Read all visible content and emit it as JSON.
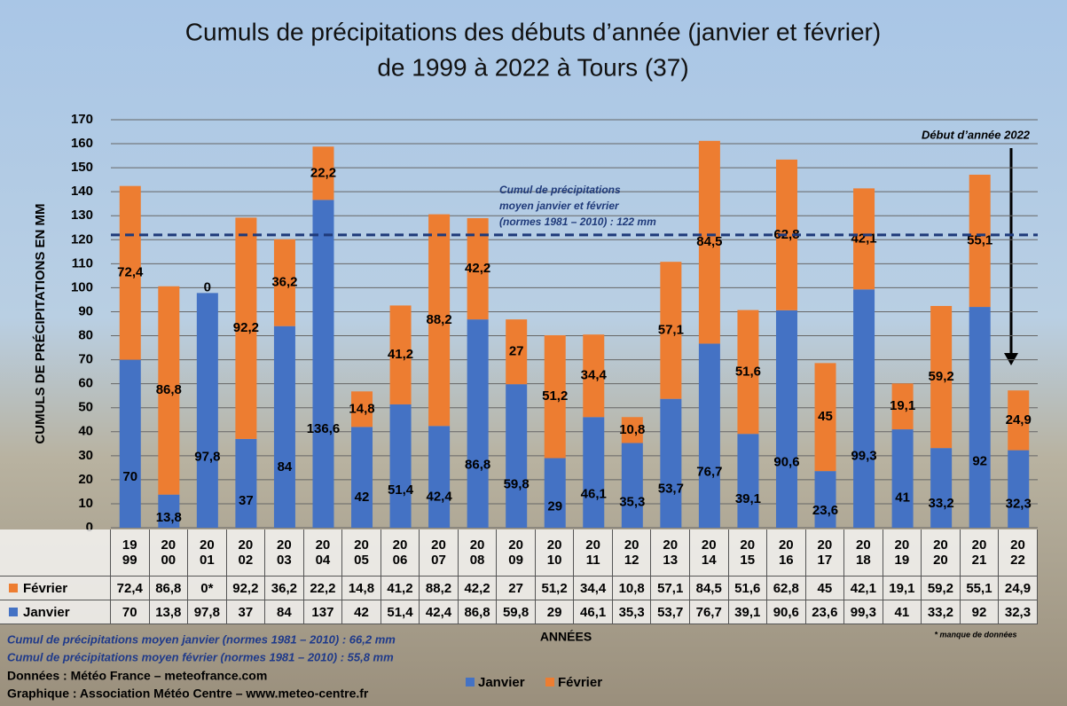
{
  "chart_data": {
    "type": "bar",
    "stacked": true,
    "title": "Cumuls de précipitations des débuts d’année (janvier et février)",
    "subtitle": "de 1999 à 2022 à Tours (37)",
    "y_label": "CUMULS DE PRÉCIPITATIONS EN MM",
    "x_label": "ANNÉES",
    "categories": [
      "1999",
      "2000",
      "2001",
      "2002",
      "2003",
      "2004",
      "2005",
      "2006",
      "2007",
      "2008",
      "2009",
      "2010",
      "2011",
      "2012",
      "2013",
      "2014",
      "2015",
      "2016",
      "2017",
      "2018",
      "2019",
      "2020",
      "2021",
      "2022"
    ],
    "series": [
      {
        "name": "Janvier",
        "color": "#4472c4",
        "values": [
          70,
          13.8,
          97.8,
          37,
          84,
          136.6,
          42,
          51.4,
          42.4,
          86.8,
          59.8,
          29,
          46.1,
          35.3,
          53.7,
          76.7,
          39.1,
          90.6,
          23.6,
          99.3,
          41,
          33.2,
          92,
          32.3
        ],
        "value_labels": [
          "70",
          "13,8",
          "97,8",
          "37",
          "84",
          "136,6",
          "42",
          "51,4",
          "42,4",
          "86,8",
          "59,8",
          "29",
          "46,1",
          "35,3",
          "53,7",
          "76,7",
          "39,1",
          "90,6",
          "23,6",
          "99,3",
          "41",
          "33,2",
          "92",
          "32,3"
        ],
        "table_labels": [
          "70",
          "13,8",
          "97,8",
          "37",
          "84",
          "137",
          "42",
          "51,4",
          "42,4",
          "86,8",
          "59,8",
          "29",
          "46,1",
          "35,3",
          "53,7",
          "76,7",
          "39,1",
          "90,6",
          "23,6",
          "99,3",
          "41",
          "33,2",
          "92",
          "32,3"
        ]
      },
      {
        "name": "Février",
        "color": "#ed7d31",
        "values": [
          72.4,
          86.8,
          0,
          92.2,
          36.2,
          22.2,
          14.8,
          41.2,
          88.2,
          42.2,
          27,
          51.2,
          34.4,
          10.8,
          57.1,
          84.5,
          51.6,
          62.8,
          45,
          42.1,
          19.1,
          59.2,
          55.1,
          24.9
        ],
        "value_labels": [
          "72,4",
          "86,8",
          "0",
          "92,2",
          "36,2",
          "22,2",
          "14,8",
          "41,2",
          "88,2",
          "42,2",
          "27",
          "51,2",
          "34,4",
          "10,8",
          "57,1",
          "84,5",
          "51,6",
          "62,8",
          "45",
          "42,1",
          "19,1",
          "59,2",
          "55,1",
          "24,9"
        ],
        "table_labels": [
          "72,4",
          "86,8",
          "0*",
          "92,2",
          "36,2",
          "22,2",
          "14,8",
          "41,2",
          "88,2",
          "42,2",
          "27",
          "51,2",
          "34,4",
          "10,8",
          "57,1",
          "84,5",
          "51,6",
          "62,8",
          "45",
          "42,1",
          "19,1",
          "59,2",
          "55,1",
          "24,9"
        ]
      }
    ],
    "ylim": [
      0,
      170
    ],
    "yticks": [
      0,
      10,
      20,
      30,
      40,
      50,
      60,
      70,
      80,
      90,
      100,
      110,
      120,
      130,
      140,
      150,
      160,
      170
    ],
    "grid": true,
    "reference_line": {
      "value": 122,
      "label_lines": [
        "Cumul de précipitations",
        "moyen janvier et février",
        "(normes 1981 – 2010) : 122 mm"
      ]
    },
    "annotation": "Début d’année 2022",
    "footnote": "* manque de données",
    "notes": [
      "Cumul de précipitations moyen janvier (normes 1981 – 2010) : 66,2 mm",
      "Cumul de précipitations moyen février (normes 1981 – 2010) : 55,8 mm"
    ],
    "credits": [
      "Données : Météo France – meteofrance.com",
      "Graphique : Association Météo Centre – www.meteo-centre.fr"
    ]
  }
}
